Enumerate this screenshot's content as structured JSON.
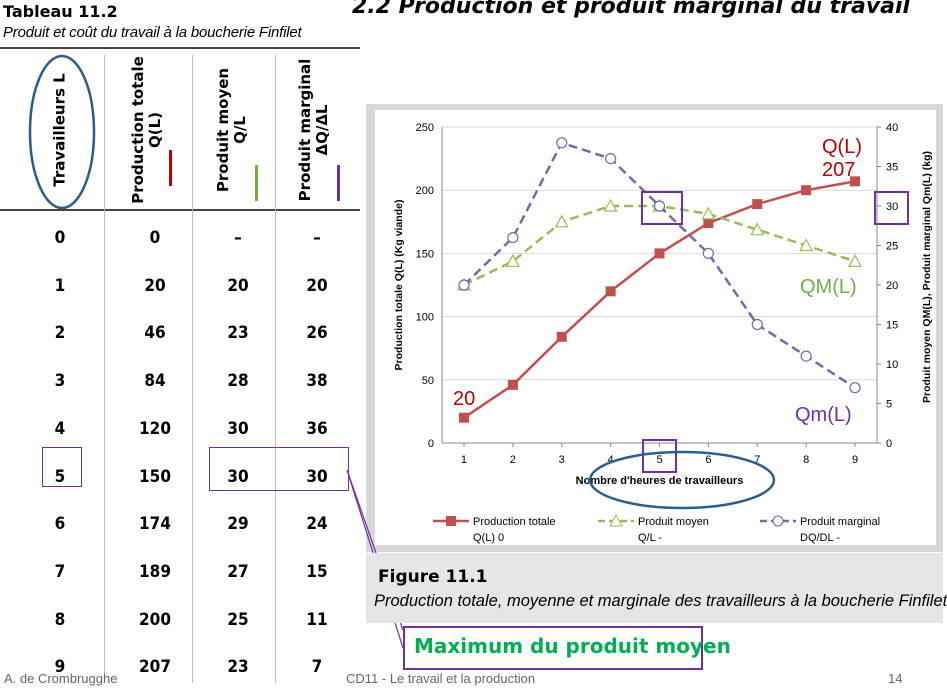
{
  "slide": {
    "title": "2.2  Production et produit marginal du travail"
  },
  "table": {
    "title": "Tableau 11.2",
    "subtitle": "Produit et coût du travail à la boucherie Finfilet",
    "headers": [
      {
        "line1": "Travailleurs L",
        "line2": ""
      },
      {
        "line1": "Production totale",
        "line2": "Q(L)"
      },
      {
        "line1": "Produit moyen",
        "line2": "Q/L"
      },
      {
        "line1": "Produit marginal",
        "line2": "ΔQ/ΔL"
      }
    ],
    "rows": [
      [
        "0",
        "0",
        "–",
        "–"
      ],
      [
        "1",
        "20",
        "20",
        "20"
      ],
      [
        "2",
        "46",
        "23",
        "26"
      ],
      [
        "3",
        "84",
        "28",
        "38"
      ],
      [
        "4",
        "120",
        "30",
        "36"
      ],
      [
        "5",
        "150",
        "30",
        "30"
      ],
      [
        "6",
        "174",
        "29",
        "24"
      ],
      [
        "7",
        "189",
        "27",
        "15"
      ],
      [
        "8",
        "200",
        "25",
        "11"
      ],
      [
        "9",
        "207",
        "23",
        "7"
      ]
    ],
    "colors": {
      "total": "#c00000",
      "moyen": "#70ad47",
      "marginal": "#7030a0",
      "oval": "#2e5c8a"
    }
  },
  "chart_data": {
    "type": "line",
    "x": [
      1,
      2,
      3,
      4,
      5,
      6,
      7,
      8,
      9
    ],
    "xlabel": "Nombre d'heures de travailleurs",
    "ylabel_left": "Production totale Q(L) (Kg viande)",
    "ylabel_right": "Produit moyen QM(L), Produit marginal Qm(L) (kg)",
    "ylim_left": [
      0,
      250
    ],
    "yticks_left": [
      0,
      50,
      100,
      150,
      200,
      250
    ],
    "ylim_right": [
      0,
      40
    ],
    "yticks_right": [
      0,
      5,
      10,
      15,
      20,
      25,
      30,
      35,
      40
    ],
    "series": [
      {
        "name": "Production totale Q(L) 0",
        "legend_line1": "Production totale",
        "legend_line2": "Q(L) 0",
        "axis": "left",
        "color": "#c0504d",
        "style": "solid",
        "marker": "square",
        "values": [
          20,
          46,
          84,
          120,
          150,
          174,
          189,
          200,
          207
        ]
      },
      {
        "name": "Produit moyen Q/L -",
        "legend_line1": "Produit moyen",
        "legend_line2": "Q/L -",
        "axis": "right",
        "color": "#9bbb59",
        "style": "dashed",
        "marker": "triangle",
        "values": [
          20,
          23,
          28,
          30,
          30,
          29,
          27,
          25,
          23
        ]
      },
      {
        "name": "Produit marginal DQ/DL -",
        "legend_line1": "Produit marginal",
        "legend_line2": "DQ/DL  -",
        "axis": "right",
        "color": "#8064a2",
        "style": "dashed",
        "marker": "circle",
        "values": [
          20,
          26,
          38,
          36,
          30,
          24,
          15,
          11,
          7
        ]
      }
    ],
    "annotations": [
      {
        "text": "Q(L)",
        "color": "#c00000"
      },
      {
        "text": "207",
        "color": "#c00000"
      },
      {
        "text": "20",
        "color": "#c00000"
      },
      {
        "text": "QM(L)",
        "color": "#70ad47"
      },
      {
        "text": "Qm(L)",
        "color": "#7030a0"
      }
    ],
    "grid": true,
    "legend": "bottom"
  },
  "figure": {
    "title": "Figure 11.1",
    "caption": "Production totale, moyenne et marginale des travailleurs à la boucherie Finfilet"
  },
  "callout": {
    "text": "Maximum du produit moyen",
    "color": "#00b050",
    "border": "#7030a0"
  },
  "footer": {
    "author": "A. de Crombrugghe",
    "course": "CD11 - Le travail et la production",
    "page": "14"
  }
}
